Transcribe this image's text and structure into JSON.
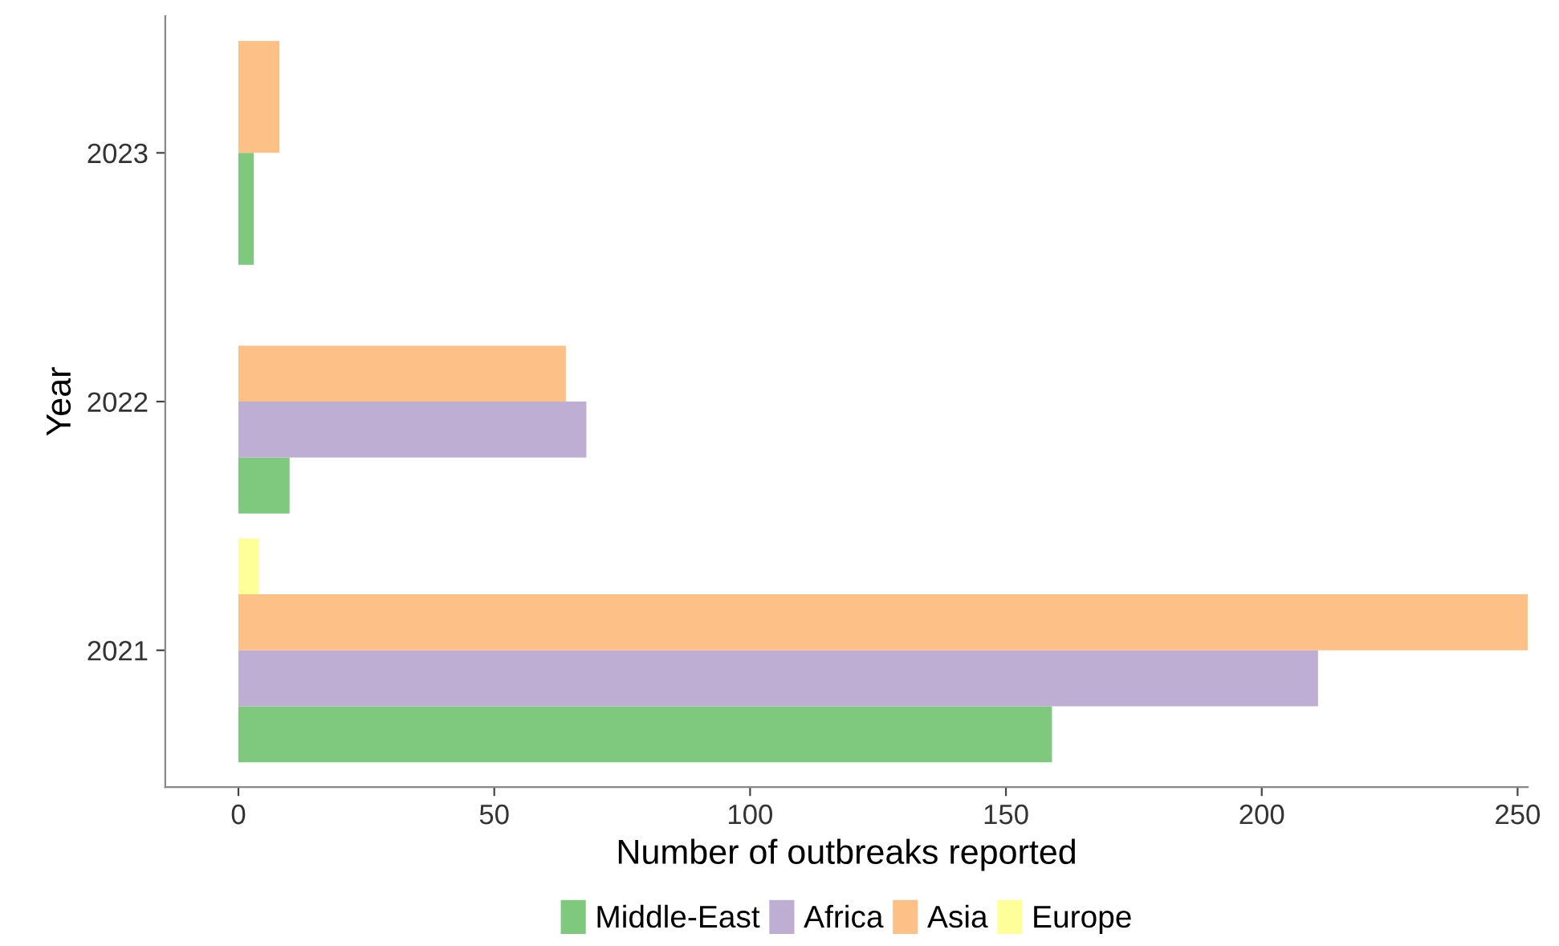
{
  "chart_data": {
    "type": "bar",
    "orientation": "horizontal",
    "xlabel": "Number of outbreaks reported",
    "ylabel": "Year",
    "categories": [
      "2023",
      "2022",
      "2021"
    ],
    "series": [
      {
        "name": "Middle-East",
        "color": "#7fc97f",
        "values": [
          3,
          10,
          159
        ]
      },
      {
        "name": "Africa",
        "color": "#beaed4",
        "values": [
          null,
          68,
          211
        ]
      },
      {
        "name": "Asia",
        "color": "#fdc086",
        "values": [
          8,
          64,
          252
        ]
      },
      {
        "name": "Europe",
        "color": "#ffff99",
        "values": [
          null,
          0,
          4
        ]
      }
    ],
    "xlim": [
      -14.3,
      252
    ],
    "xticks": [
      0,
      50,
      100,
      150,
      200,
      250
    ],
    "grid": false,
    "legend": "bottom"
  }
}
